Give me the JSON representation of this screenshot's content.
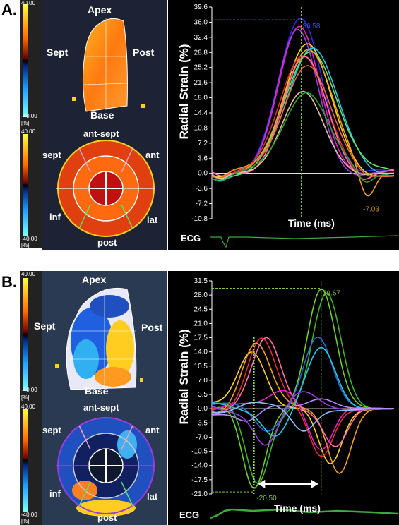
{
  "panels": [
    {
      "label": "A.",
      "colorbar": {
        "top": "40.00",
        "bottom": "-40.00",
        "unit": "[%]"
      },
      "long_axis": {
        "apex": "Apex",
        "base": "Base",
        "sept": "Sept",
        "post": "Post"
      },
      "short_axis": {
        "ant_sept": "ant-sept",
        "sept": "sept",
        "ant": "ant",
        "inf": "inf",
        "lat": "lat",
        "post": "post"
      },
      "ecg_label": "ECG"
    },
    {
      "label": "B.",
      "colorbar": {
        "top": "40.00",
        "bottom": "-40.00",
        "unit": "[%]"
      },
      "long_axis": {
        "apex": "Apex",
        "base": "Base",
        "sept": "Sept",
        "post": "Post"
      },
      "short_axis": {
        "ant_sept": "ant-sept",
        "sept": "sept",
        "ant": "ant",
        "inf": "inf",
        "lat": "lat",
        "post": "post"
      },
      "ecg_label": "ECG"
    }
  ],
  "chart_data": [
    {
      "type": "line",
      "ylabel": "Radial Strain (%)",
      "xlabel": "Time (ms)",
      "yticks": [
        "39.6",
        "36.0",
        "32.4",
        "28.8",
        "25.2",
        "21.6",
        "18.0",
        "14.4",
        "10.8",
        "7.2",
        "3.6",
        "0.0",
        "-3.6",
        "-7.2",
        "-10.8"
      ],
      "ylim": [
        -10.8,
        39.6
      ],
      "annotations": [
        {
          "text": "36.58",
          "color": "#3a4bd6"
        },
        {
          "text": "-7.03",
          "color": "#c88a1a"
        }
      ],
      "series": [
        {
          "color": "#2b2bd9",
          "peak": 36.58,
          "peakx": 0.49,
          "trough": -0.6,
          "width": 0.17
        },
        {
          "color": "#e81ec4",
          "peak": 35.0,
          "peakx": 0.48,
          "trough": -0.4,
          "width": 0.16
        },
        {
          "color": "#9a3de0",
          "peak": 33.5,
          "peakx": 0.47,
          "trough": -0.2,
          "width": 0.16
        },
        {
          "color": "#ffd21a",
          "peak": 31.0,
          "peakx": 0.52,
          "trough": -0.5,
          "width": 0.18
        },
        {
          "color": "#f2a31c",
          "peak": 29.5,
          "peakx": 0.53,
          "trough": -7.03,
          "width": 0.19
        },
        {
          "color": "#22c9e8",
          "peak": 30.5,
          "peakx": 0.55,
          "trough": -0.5,
          "width": 0.19
        },
        {
          "color": "#64e36a",
          "peak": 29.0,
          "peakx": 0.55,
          "trough": -0.3,
          "width": 0.2
        },
        {
          "color": "#e02c2c",
          "peak": 28.0,
          "peakx": 0.5,
          "trough": -2.5,
          "width": 0.18
        },
        {
          "color": "#ff6fa8",
          "peak": 27.0,
          "peakx": 0.51,
          "trough": -1.5,
          "width": 0.17
        },
        {
          "color": "#f06a2e",
          "peak": 26.0,
          "peakx": 0.52,
          "trough": -1.0,
          "width": 0.18
        },
        {
          "color": "#e6c0a0",
          "peak": 19.5,
          "peakx": 0.5,
          "trough": -0.5,
          "width": 0.16
        },
        {
          "color": "#2da12d",
          "peak": 20.0,
          "peakx": 0.52,
          "trough": -3.2,
          "width": 0.17
        }
      ]
    },
    {
      "type": "line",
      "ylabel": "Radial Strain (%)",
      "xlabel": "Time (ms)",
      "yticks": [
        "31.5",
        "28.0",
        "24.5",
        "21.0",
        "17.5",
        "14.0",
        "10.5",
        "7.0",
        "3.5",
        "0.0",
        "-3.5",
        "-7.0",
        "-10.5",
        "-14.0",
        "-17.5",
        "-21.0"
      ],
      "ylim": [
        -21.0,
        31.5
      ],
      "annotations": [
        {
          "text": "29.67",
          "color": "#7fcc2e"
        },
        {
          "text": "-20.50",
          "color": "#7fcc2e"
        }
      ],
      "series": [
        {
          "color": "#6ed12a",
          "peak": 29.67,
          "peakx": 0.6,
          "trough": -20.5,
          "troughx": 0.23
        },
        {
          "color": "#3fb42a",
          "peak": 28.0,
          "peakx": 0.63,
          "trough": -18.0,
          "troughx": 0.25
        },
        {
          "color": "#ffd21a",
          "peak": 15.0,
          "peakx": 0.22,
          "trough": -14.0,
          "troughx": 0.65
        },
        {
          "color": "#e02c2c",
          "peak": 18.0,
          "peakx": 0.27,
          "trough": -12.0,
          "troughx": 0.6
        },
        {
          "color": "#f2a31c",
          "peak": 16.0,
          "peakx": 0.24,
          "trough": -15.5,
          "troughx": 0.7
        },
        {
          "color": "#ff6fa8",
          "peak": 16.5,
          "peakx": 0.3,
          "trough": -9.0,
          "troughx": 0.68
        },
        {
          "color": "#e81ec4",
          "peak": 5.0,
          "peakx": 0.4,
          "trough": -10.0,
          "troughx": 0.6
        },
        {
          "color": "#2b6bd9",
          "peak": 17.5,
          "peakx": 0.58,
          "trough": -5.0,
          "troughx": 0.3
        },
        {
          "color": "#22c9e8",
          "peak": 14.5,
          "peakx": 0.6,
          "trough": -6.0,
          "troughx": 0.35
        },
        {
          "color": "#9a3de0",
          "peak": 3.5,
          "peakx": 0.5,
          "trough": -8.5,
          "troughx": 0.3
        },
        {
          "color": "#8cc0ff",
          "peak": 2.0,
          "peakx": 0.2,
          "trough": -6.0,
          "troughx": 0.5
        },
        {
          "color": "#b88cff",
          "peak": 3.0,
          "peakx": 0.6,
          "trough": -3.5,
          "troughx": 0.2
        }
      ]
    }
  ]
}
